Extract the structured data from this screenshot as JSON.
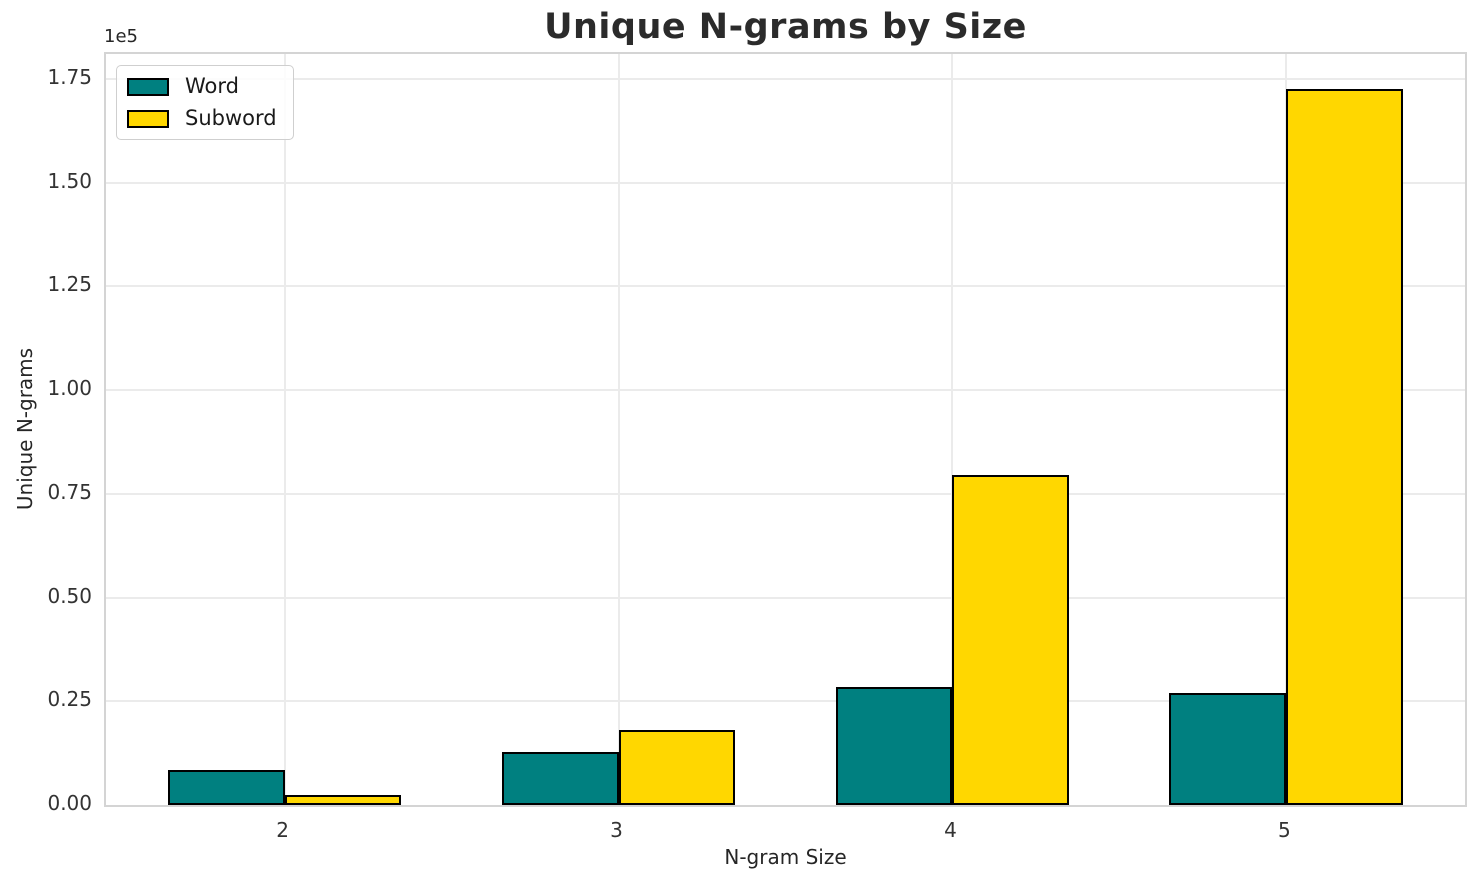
{
  "figure": {
    "title": "Unique N-grams by Size",
    "offset_text": "1e5"
  },
  "chart_data": {
    "type": "bar",
    "title": "Unique N-grams by Size",
    "xlabel": "N-gram Size",
    "ylabel": "Unique N-grams",
    "categories": [
      "2",
      "3",
      "4",
      "5"
    ],
    "x": [
      2,
      3,
      4,
      5
    ],
    "series": [
      {
        "name": "Word",
        "color": "#008080",
        "values": [
          8500,
          12800,
          28500,
          27100
        ]
      },
      {
        "name": "Subword",
        "color": "#FFD700",
        "values": [
          2500,
          18000,
          79500,
          172600
        ]
      }
    ],
    "bar_edge_color": "#000000",
    "bar_width": 0.35,
    "xlim": [
      1.465,
      5.535
    ],
    "ylim": [
      0,
      181000
    ],
    "yticks": [
      0,
      25000,
      50000,
      75000,
      100000,
      125000,
      150000,
      175000
    ],
    "ytick_labels": [
      "0.00",
      "0.25",
      "0.50",
      "0.75",
      "1.00",
      "1.25",
      "1.50",
      "1.75"
    ],
    "y_offset_label": "1e5",
    "grid": true,
    "legend_position": "upper left"
  }
}
